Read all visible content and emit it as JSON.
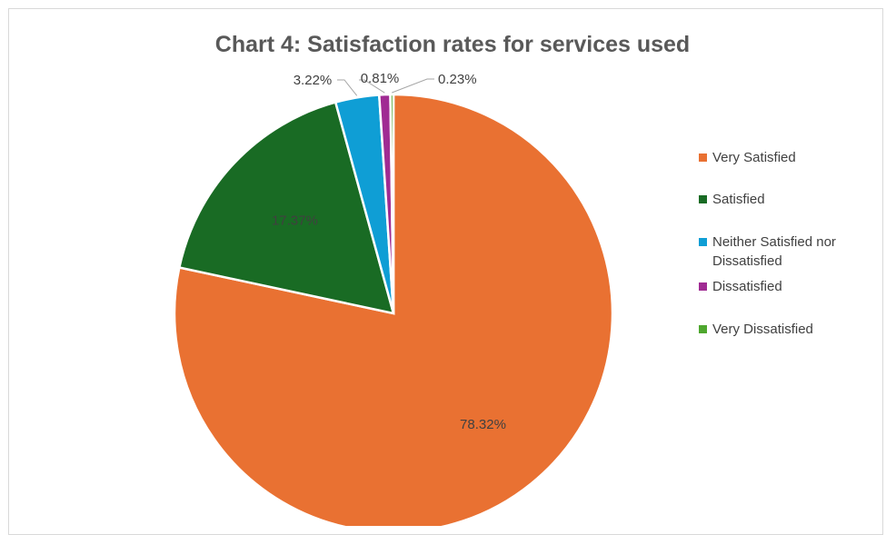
{
  "chart_data": {
    "type": "pie",
    "title": "Chart 4: Satisfaction rates for services used",
    "categories": [
      "Very Satisfied",
      "Satisfied",
      "Neither Satisfied nor Dissatisfied",
      "Dissatisfied",
      "Very Dissatisfied"
    ],
    "values": [
      78.32,
      17.37,
      3.22,
      0.81,
      0.23
    ],
    "data_labels": [
      "78.32%",
      "17.37%",
      "3.22%",
      "0.81%",
      "0.23%"
    ],
    "colors": [
      "#E97132",
      "#196B24",
      "#0F9ED5",
      "#A02B93",
      "#4EA72E"
    ],
    "legend_position": "right",
    "legend_lines": [
      [
        "Very Satisfied"
      ],
      [
        "Satisfied"
      ],
      [
        "Neither Satisfied nor",
        "Dissatisfied"
      ],
      [
        "Dissatisfied"
      ],
      [
        "Very Dissatisfied"
      ]
    ]
  }
}
